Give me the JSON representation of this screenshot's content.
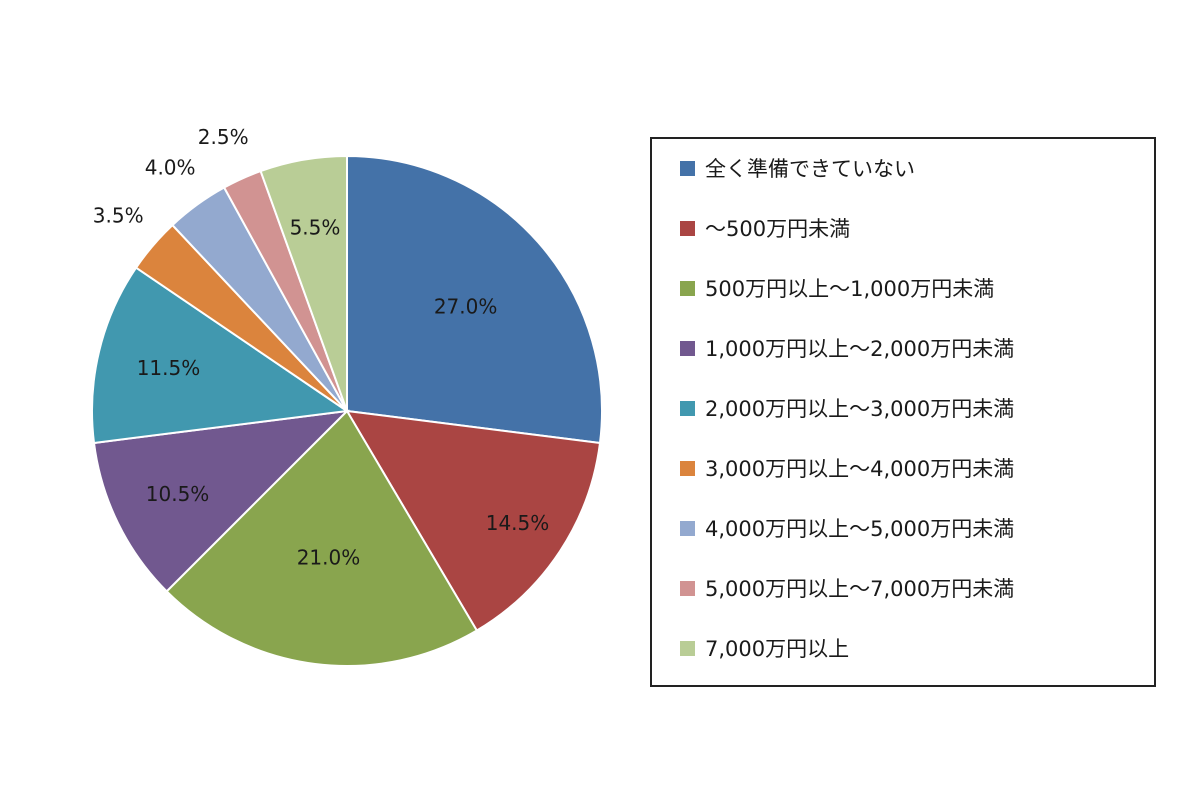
{
  "chart_data": {
    "type": "pie",
    "title": "",
    "legend_placement": "right",
    "slices": [
      {
        "label": "全く準備できていない",
        "value": 27.0,
        "value_label": "27.0%",
        "color": "#4472a8"
      },
      {
        "label": "～500万円未満",
        "value": 14.5,
        "value_label": "14.5%",
        "color": "#aa4543"
      },
      {
        "label": "500万円以上～1,000万円未満",
        "value": 21.0,
        "value_label": "21.0%",
        "color": "#89a54e"
      },
      {
        "label": "1,000万円以上～2,000万円未満",
        "value": 10.5,
        "value_label": "10.5%",
        "color": "#71588f"
      },
      {
        "label": "2,000万円以上～3,000万円未満",
        "value": 11.5,
        "value_label": "11.5%",
        "color": "#4198af"
      },
      {
        "label": "3,000万円以上～4,000万円未満",
        "value": 3.5,
        "value_label": "3.5%",
        "color": "#db843d"
      },
      {
        "label": "4,000万円以上～5,000万円未満",
        "value": 4.0,
        "value_label": "4.0%",
        "color": "#93a9cf"
      },
      {
        "label": "5,000万円以上～7,000万円未満",
        "value": 2.5,
        "value_label": "2.5%",
        "color": "#d19392"
      },
      {
        "label": "7,000万円以上",
        "value": 5.5,
        "value_label": "5.5%",
        "color": "#b9cd96"
      }
    ]
  }
}
